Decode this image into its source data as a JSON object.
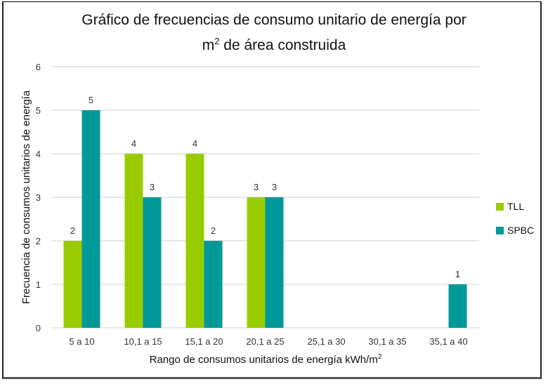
{
  "chart_data": {
    "type": "bar",
    "title_line1": "Gráfico de frecuencias de consumo unitario de energía por",
    "title_line2_base": "m",
    "title_line2_sup": "2",
    "title_line2_rest": " de área construida",
    "xlabel_base": "Rango de consumos unitarios de energía kWh/m",
    "xlabel_sup": "2",
    "ylabel": "Frecuencia de consumos unitarios de energía",
    "categories": [
      "5 a 10",
      "10,1 a  15",
      "15,1 a 20",
      "20,1 a 25",
      "25,1 a 30",
      "30,1 a 35",
      "35,1 a 40"
    ],
    "series": [
      {
        "name": "TLL",
        "color": "#99CC00",
        "values": [
          2,
          4,
          4,
          3,
          0,
          0,
          0
        ]
      },
      {
        "name": "SPBC",
        "color": "#009999",
        "values": [
          5,
          3,
          2,
          3,
          0,
          0,
          1
        ]
      }
    ],
    "ylim": [
      0,
      6
    ],
    "yticks": [
      0,
      1,
      2,
      3,
      4,
      5,
      6
    ],
    "grid": true,
    "legend_position": "right"
  }
}
